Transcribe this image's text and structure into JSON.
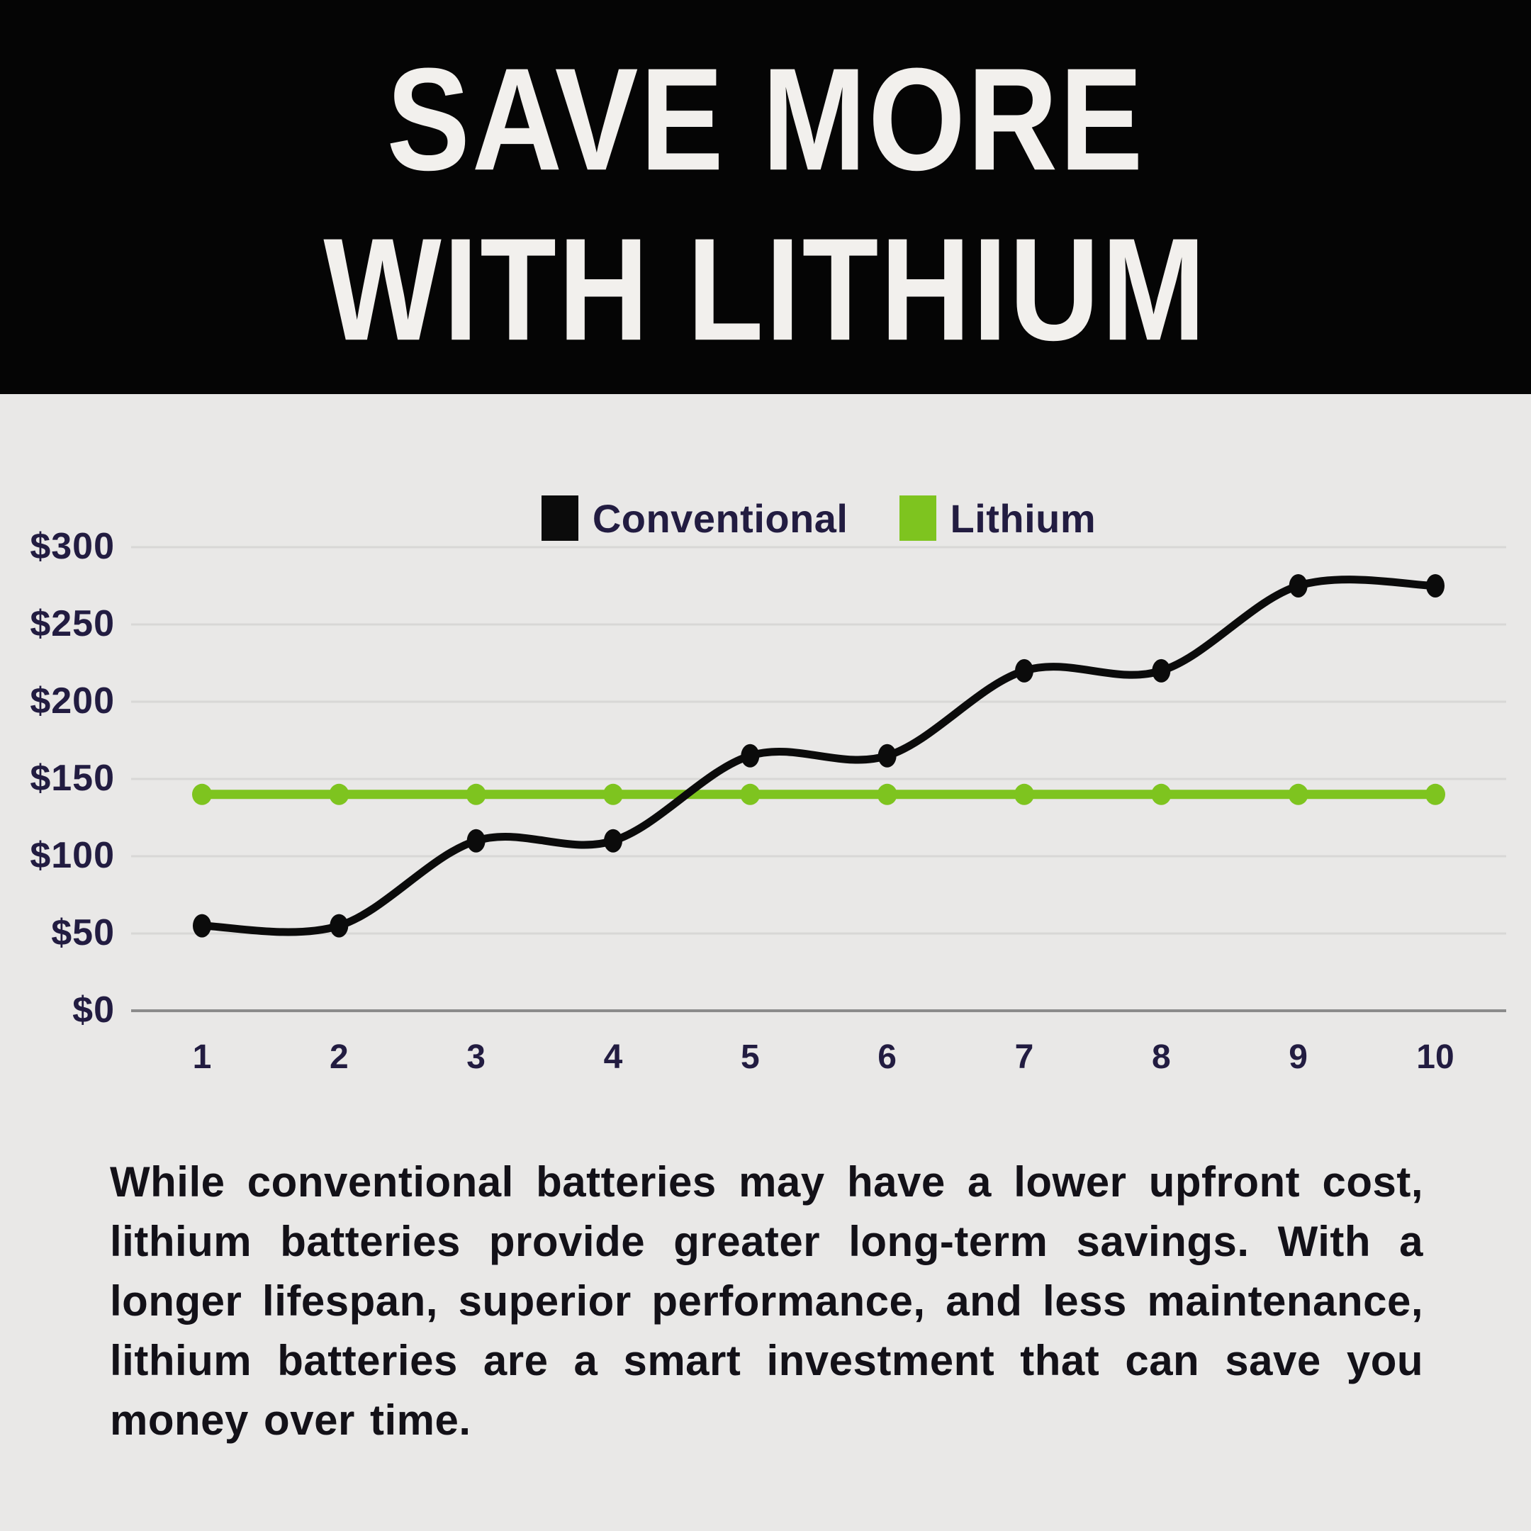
{
  "header": {
    "title_line1": "SAVE MORE",
    "title_line2": "WITH LITHIUM"
  },
  "chart_data": {
    "type": "line",
    "x": [
      "1",
      "2",
      "3",
      "4",
      "5",
      "6",
      "7",
      "8",
      "9",
      "10"
    ],
    "series": [
      {
        "name": "Conventional",
        "color": "#0b0b0b",
        "values": [
          55,
          55,
          110,
          110,
          165,
          165,
          220,
          220,
          275,
          275
        ]
      },
      {
        "name": "Lithium",
        "color": "#7ec41f",
        "values": [
          140,
          140,
          140,
          140,
          140,
          140,
          140,
          140,
          140,
          140
        ]
      }
    ],
    "ylim": [
      0,
      300
    ],
    "ytick_labels": [
      "$300",
      "$250",
      "$200",
      "$150",
      "$100",
      "$50",
      "$0"
    ],
    "xlabel": "",
    "ylabel": "",
    "grid": true,
    "legend_position": "top-center"
  },
  "footer": {
    "paragraph": "While conventional batteries may have a lower upfront cost, lithium batteries provide greater long-term savings. With a longer lifespan, superior performance, and less maintenance, lithium batteries are a smart investment that can save you money over time."
  },
  "colors": {
    "header_bg": "#050505",
    "body_bg": "#e9e8e7",
    "title": "#f2f0ed",
    "tick": "#221c41",
    "paragraph": "#131118",
    "grid": "#d8d7d6",
    "axis": "#8b8b8b"
  }
}
